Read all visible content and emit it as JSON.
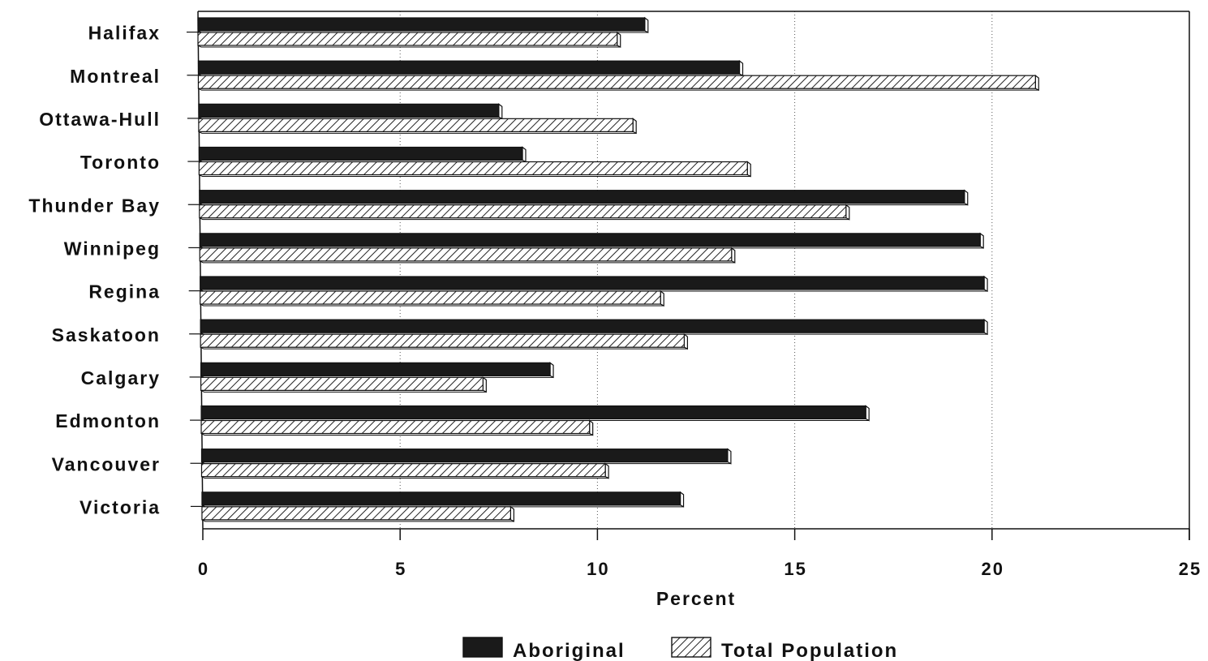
{
  "chart_data": {
    "type": "bar",
    "orientation": "horizontal",
    "categories": [
      "Halifax",
      "Montreal",
      "Ottawa-Hull",
      "Toronto",
      "Thunder Bay",
      "Winnipeg",
      "Regina",
      "Saskatoon",
      "Calgary",
      "Edmonton",
      "Vancouver",
      "Victoria"
    ],
    "series": [
      {
        "name": "Aboriginal",
        "values": [
          11.2,
          13.6,
          7.5,
          8.1,
          19.3,
          19.7,
          19.8,
          19.8,
          8.8,
          16.8,
          13.3,
          12.1
        ],
        "pattern": "solid",
        "color": "#1a1a1a"
      },
      {
        "name": "Total Population",
        "values": [
          10.5,
          21.1,
          10.9,
          13.8,
          16.3,
          13.4,
          11.6,
          12.2,
          7.1,
          9.8,
          10.2,
          7.8
        ],
        "pattern": "diagonal-hatch",
        "color": "#ffffff"
      }
    ],
    "title": "",
    "xlabel": "Percent",
    "ylabel": "",
    "xlim": [
      0,
      25
    ],
    "xticks": [
      0,
      5,
      10,
      15,
      20,
      25
    ],
    "grid": "vertical dotted",
    "legend_position": "bottom-center"
  }
}
